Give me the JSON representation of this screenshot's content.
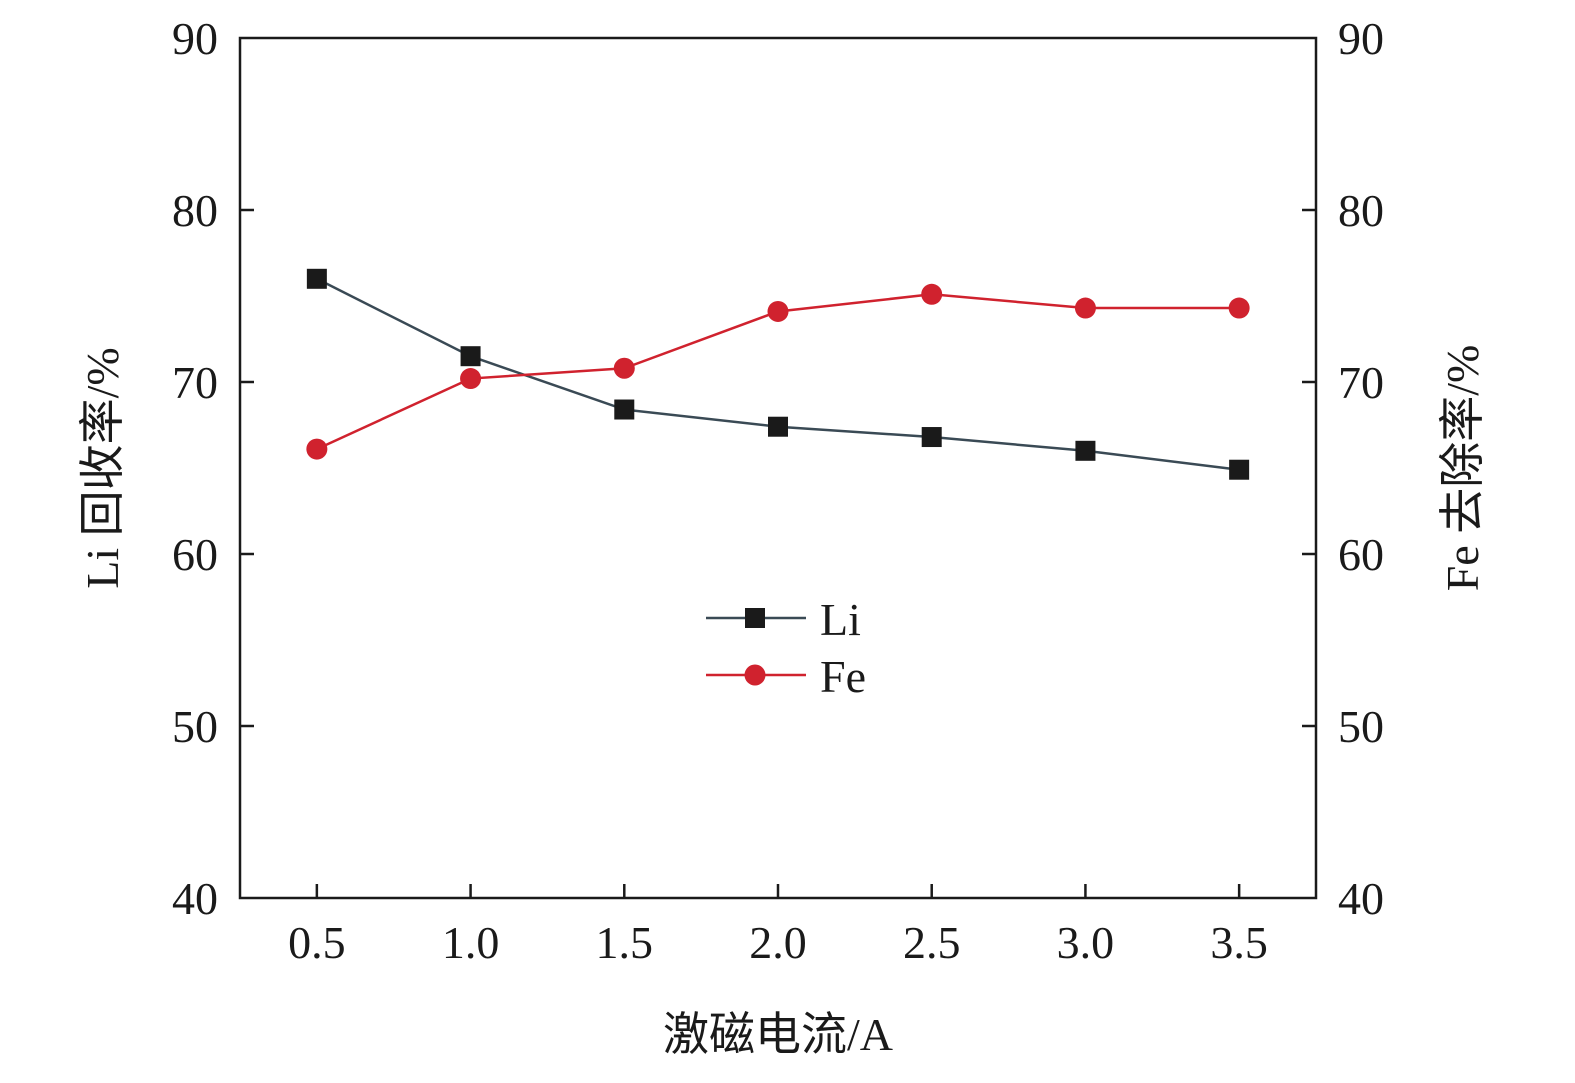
{
  "chart_data": {
    "type": "line",
    "x": [
      0.5,
      1.0,
      1.5,
      2.0,
      2.5,
      3.0,
      3.5
    ],
    "x_tick_labels": [
      "0.5",
      "1.0",
      "1.5",
      "2.0",
      "2.5",
      "3.0",
      "3.5"
    ],
    "xlabel": "激磁电流/A",
    "ylabel_left": "Li 回收率/%",
    "ylabel_right": "Fe 去除率/%",
    "ylim": [
      40,
      90
    ],
    "y_ticks": [
      40,
      50,
      60,
      70,
      80,
      90
    ],
    "y_tick_labels": [
      "40",
      "50",
      "60",
      "70",
      "80",
      "90"
    ],
    "grid": false,
    "legend_position": "center",
    "series": [
      {
        "name": "Li",
        "axis": "left",
        "marker": "square",
        "color": "#1a1a1a",
        "line_color": "#3a4a55",
        "values": [
          76.0,
          71.5,
          68.4,
          67.4,
          66.8,
          66.0,
          64.9
        ]
      },
      {
        "name": "Fe",
        "axis": "right",
        "marker": "circle",
        "color": "#d0222e",
        "line_color": "#d0222e",
        "values": [
          66.1,
          70.2,
          70.8,
          74.1,
          75.1,
          74.3,
          74.3
        ]
      }
    ]
  }
}
